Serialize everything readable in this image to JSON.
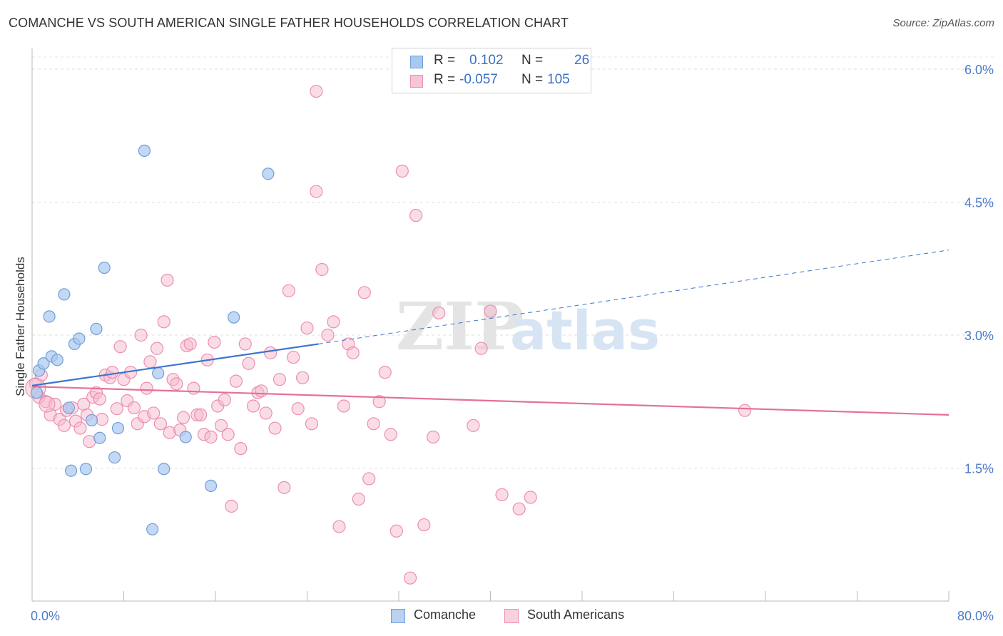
{
  "title": "COMANCHE VS SOUTH AMERICAN SINGLE FATHER HOUSEHOLDS CORRELATION CHART",
  "source": "Source: ZipAtlas.com",
  "watermark": {
    "zip": "ZIP",
    "atlas": "atlas"
  },
  "legend": {
    "rows": [
      {
        "r_label": "R =",
        "r_value": "0.102",
        "n_label": "N =",
        "n_value": "26"
      },
      {
        "r_label": "R =",
        "r_value": "-0.057",
        "n_label": "N =",
        "n_value": "105"
      }
    ]
  },
  "bottom_legend": [
    "Comanche",
    "South Americans"
  ],
  "colors": {
    "comanche_fill": "#a9c8f0",
    "comanche_stroke": "#6f9fd8",
    "comanche_line": "#3a75cf",
    "south_fill": "#f6b9cd",
    "south_stroke": "#ec8fae",
    "south_line": "#e4709a",
    "tick_text": "#4a7cc9"
  },
  "chart_data": {
    "type": "scatter",
    "title": "COMANCHE VS SOUTH AMERICAN SINGLE FATHER HOUSEHOLDS CORRELATION CHART",
    "xlabel": "",
    "ylabel": "Single Father Households",
    "xlim": [
      0,
      80
    ],
    "ylim": [
      0,
      6.2
    ],
    "x_tick_labels": [
      "0.0%",
      "80.0%"
    ],
    "y_ticks": [
      1.5,
      3.0,
      4.5,
      6.0
    ],
    "y_tick_labels": [
      "1.5%",
      "3.0%",
      "4.5%",
      "6.0%"
    ],
    "grid": true,
    "series": [
      {
        "name": "Comanche",
        "r": 0.102,
        "n": 26,
        "trend": {
          "x0": 0,
          "y0": 2.43,
          "x1": 25,
          "y1": 2.9,
          "dash_x1": 80,
          "dash_y1": 3.96
        },
        "points": [
          [
            0.4,
            2.35
          ],
          [
            0.6,
            2.6
          ],
          [
            1.0,
            2.68
          ],
          [
            1.5,
            3.21
          ],
          [
            1.7,
            2.76
          ],
          [
            2.2,
            2.72
          ],
          [
            2.8,
            3.46
          ],
          [
            3.2,
            2.18
          ],
          [
            3.4,
            1.47
          ],
          [
            3.7,
            2.9
          ],
          [
            4.1,
            2.96
          ],
          [
            4.7,
            1.49
          ],
          [
            5.2,
            2.04
          ],
          [
            5.6,
            3.07
          ],
          [
            5.9,
            1.84
          ],
          [
            6.3,
            3.76
          ],
          [
            7.2,
            1.62
          ],
          [
            7.5,
            1.95
          ],
          [
            9.8,
            5.08
          ],
          [
            10.5,
            0.81
          ],
          [
            11.0,
            2.57
          ],
          [
            11.5,
            1.49
          ],
          [
            13.4,
            1.85
          ],
          [
            15.6,
            1.3
          ],
          [
            17.6,
            3.2
          ],
          [
            20.6,
            4.82
          ]
        ]
      },
      {
        "name": "South Americans",
        "r": -0.057,
        "n": 105,
        "trend": {
          "x0": 0,
          "y0": 2.42,
          "x1": 80,
          "y1": 2.1
        },
        "points": [
          [
            0.3,
            2.45
          ],
          [
            0.6,
            2.3
          ],
          [
            0.8,
            2.55
          ],
          [
            1.2,
            2.25
          ],
          [
            1.6,
            2.1
          ],
          [
            2.0,
            2.22
          ],
          [
            2.4,
            2.05
          ],
          [
            2.8,
            1.98
          ],
          [
            3.0,
            2.15
          ],
          [
            3.5,
            2.18
          ],
          [
            3.8,
            2.03
          ],
          [
            4.2,
            1.95
          ],
          [
            4.5,
            2.22
          ],
          [
            4.8,
            2.1
          ],
          [
            5.0,
            1.8
          ],
          [
            5.3,
            2.3
          ],
          [
            5.6,
            2.35
          ],
          [
            5.9,
            2.28
          ],
          [
            6.1,
            2.05
          ],
          [
            6.4,
            2.55
          ],
          [
            6.8,
            2.52
          ],
          [
            7.0,
            2.58
          ],
          [
            7.4,
            2.17
          ],
          [
            7.7,
            2.87
          ],
          [
            8.0,
            2.5
          ],
          [
            8.3,
            2.26
          ],
          [
            8.6,
            2.58
          ],
          [
            8.9,
            2.18
          ],
          [
            9.2,
            2.0
          ],
          [
            9.5,
            3.0
          ],
          [
            9.8,
            2.08
          ],
          [
            10.0,
            2.4
          ],
          [
            10.3,
            2.7
          ],
          [
            10.6,
            2.12
          ],
          [
            10.9,
            2.85
          ],
          [
            11.2,
            2.0
          ],
          [
            11.5,
            3.15
          ],
          [
            11.8,
            3.62
          ],
          [
            12.0,
            1.9
          ],
          [
            12.3,
            2.5
          ],
          [
            12.6,
            2.45
          ],
          [
            12.9,
            1.93
          ],
          [
            13.2,
            2.07
          ],
          [
            13.5,
            2.88
          ],
          [
            13.8,
            2.9
          ],
          [
            14.1,
            2.4
          ],
          [
            14.4,
            2.1
          ],
          [
            14.7,
            2.1
          ],
          [
            15.0,
            1.88
          ],
          [
            15.3,
            2.72
          ],
          [
            15.6,
            1.85
          ],
          [
            15.9,
            2.92
          ],
          [
            16.2,
            2.2
          ],
          [
            16.5,
            1.98
          ],
          [
            16.8,
            2.27
          ],
          [
            17.1,
            1.88
          ],
          [
            17.4,
            1.07
          ],
          [
            17.8,
            2.48
          ],
          [
            18.2,
            1.72
          ],
          [
            18.6,
            2.9
          ],
          [
            18.9,
            2.68
          ],
          [
            19.3,
            2.2
          ],
          [
            19.7,
            2.35
          ],
          [
            20.0,
            2.37
          ],
          [
            20.4,
            2.12
          ],
          [
            20.8,
            2.8
          ],
          [
            21.2,
            1.95
          ],
          [
            21.6,
            2.5
          ],
          [
            22.0,
            1.28
          ],
          [
            22.4,
            3.5
          ],
          [
            22.8,
            2.75
          ],
          [
            23.2,
            2.17
          ],
          [
            23.6,
            2.52
          ],
          [
            24.0,
            3.08
          ],
          [
            24.4,
            2.0
          ],
          [
            24.8,
            4.62
          ],
          [
            25.3,
            3.74
          ],
          [
            25.8,
            3.0
          ],
          [
            26.3,
            3.15
          ],
          [
            26.8,
            0.84
          ],
          [
            27.2,
            2.2
          ],
          [
            27.6,
            2.9
          ],
          [
            28.0,
            2.8
          ],
          [
            28.5,
            1.15
          ],
          [
            29.0,
            3.48
          ],
          [
            29.4,
            1.38
          ],
          [
            29.8,
            2.0
          ],
          [
            30.3,
            2.25
          ],
          [
            30.8,
            2.58
          ],
          [
            31.3,
            1.88
          ],
          [
            31.8,
            0.79
          ],
          [
            32.3,
            4.85
          ],
          [
            33.0,
            0.26
          ],
          [
            33.5,
            4.35
          ],
          [
            34.2,
            0.86
          ],
          [
            35.0,
            1.85
          ],
          [
            24.8,
            5.75
          ],
          [
            35.5,
            3.25
          ],
          [
            38.5,
            1.98
          ],
          [
            39.2,
            2.85
          ],
          [
            40.0,
            3.27
          ],
          [
            41.0,
            1.2
          ],
          [
            42.5,
            1.04
          ],
          [
            43.5,
            1.17
          ],
          [
            62.2,
            2.15
          ]
        ]
      }
    ]
  }
}
